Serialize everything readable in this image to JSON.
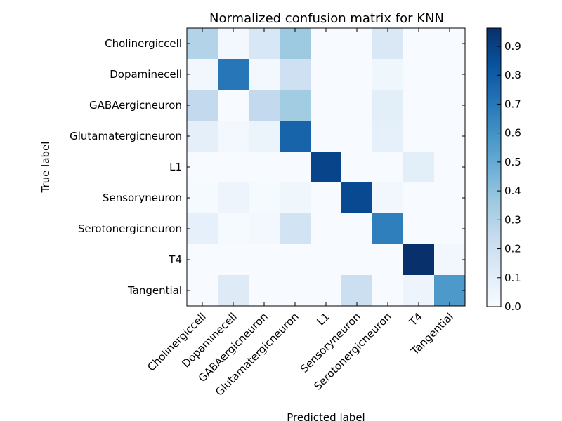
{
  "chart_data": {
    "type": "heatmap",
    "title": "Normalized confusion matrix for KNN",
    "xlabel": "Predicted label",
    "ylabel": "True label",
    "labels": [
      "Cholinergiccell",
      "Dopaminecell",
      "GABAergicneuron",
      "Glutamatergicneuron",
      "L1",
      "Sensoryneuron",
      "Serotonergicneuron",
      "T4",
      "Tangential"
    ],
    "matrix": [
      [
        0.3,
        0.02,
        0.15,
        0.36,
        0.0,
        0.0,
        0.14,
        0.0,
        0.0
      ],
      [
        0.03,
        0.7,
        0.02,
        0.2,
        0.0,
        0.0,
        0.04,
        0.0,
        0.0
      ],
      [
        0.25,
        0.0,
        0.25,
        0.35,
        0.0,
        0.0,
        0.1,
        0.0,
        0.0
      ],
      [
        0.09,
        0.02,
        0.06,
        0.77,
        0.0,
        0.0,
        0.08,
        0.0,
        0.0
      ],
      [
        0.0,
        0.0,
        0.0,
        0.0,
        0.89,
        0.0,
        0.0,
        0.1,
        0.0
      ],
      [
        0.01,
        0.05,
        0.01,
        0.04,
        0.0,
        0.87,
        0.03,
        0.0,
        0.0
      ],
      [
        0.08,
        0.01,
        0.02,
        0.18,
        0.0,
        0.0,
        0.67,
        0.0,
        0.0
      ],
      [
        0.0,
        0.0,
        0.0,
        0.0,
        0.0,
        0.0,
        0.0,
        0.97,
        0.03
      ],
      [
        0.0,
        0.12,
        0.0,
        0.0,
        0.0,
        0.21,
        0.0,
        0.05,
        0.57
      ]
    ],
    "colorbar": {
      "min": 0.0,
      "max": 0.963,
      "ticks": [
        "0.0",
        "0.1",
        "0.2",
        "0.3",
        "0.4",
        "0.5",
        "0.6",
        "0.7",
        "0.8",
        "0.9"
      ]
    },
    "colormap": "Blues",
    "grid": false
  }
}
